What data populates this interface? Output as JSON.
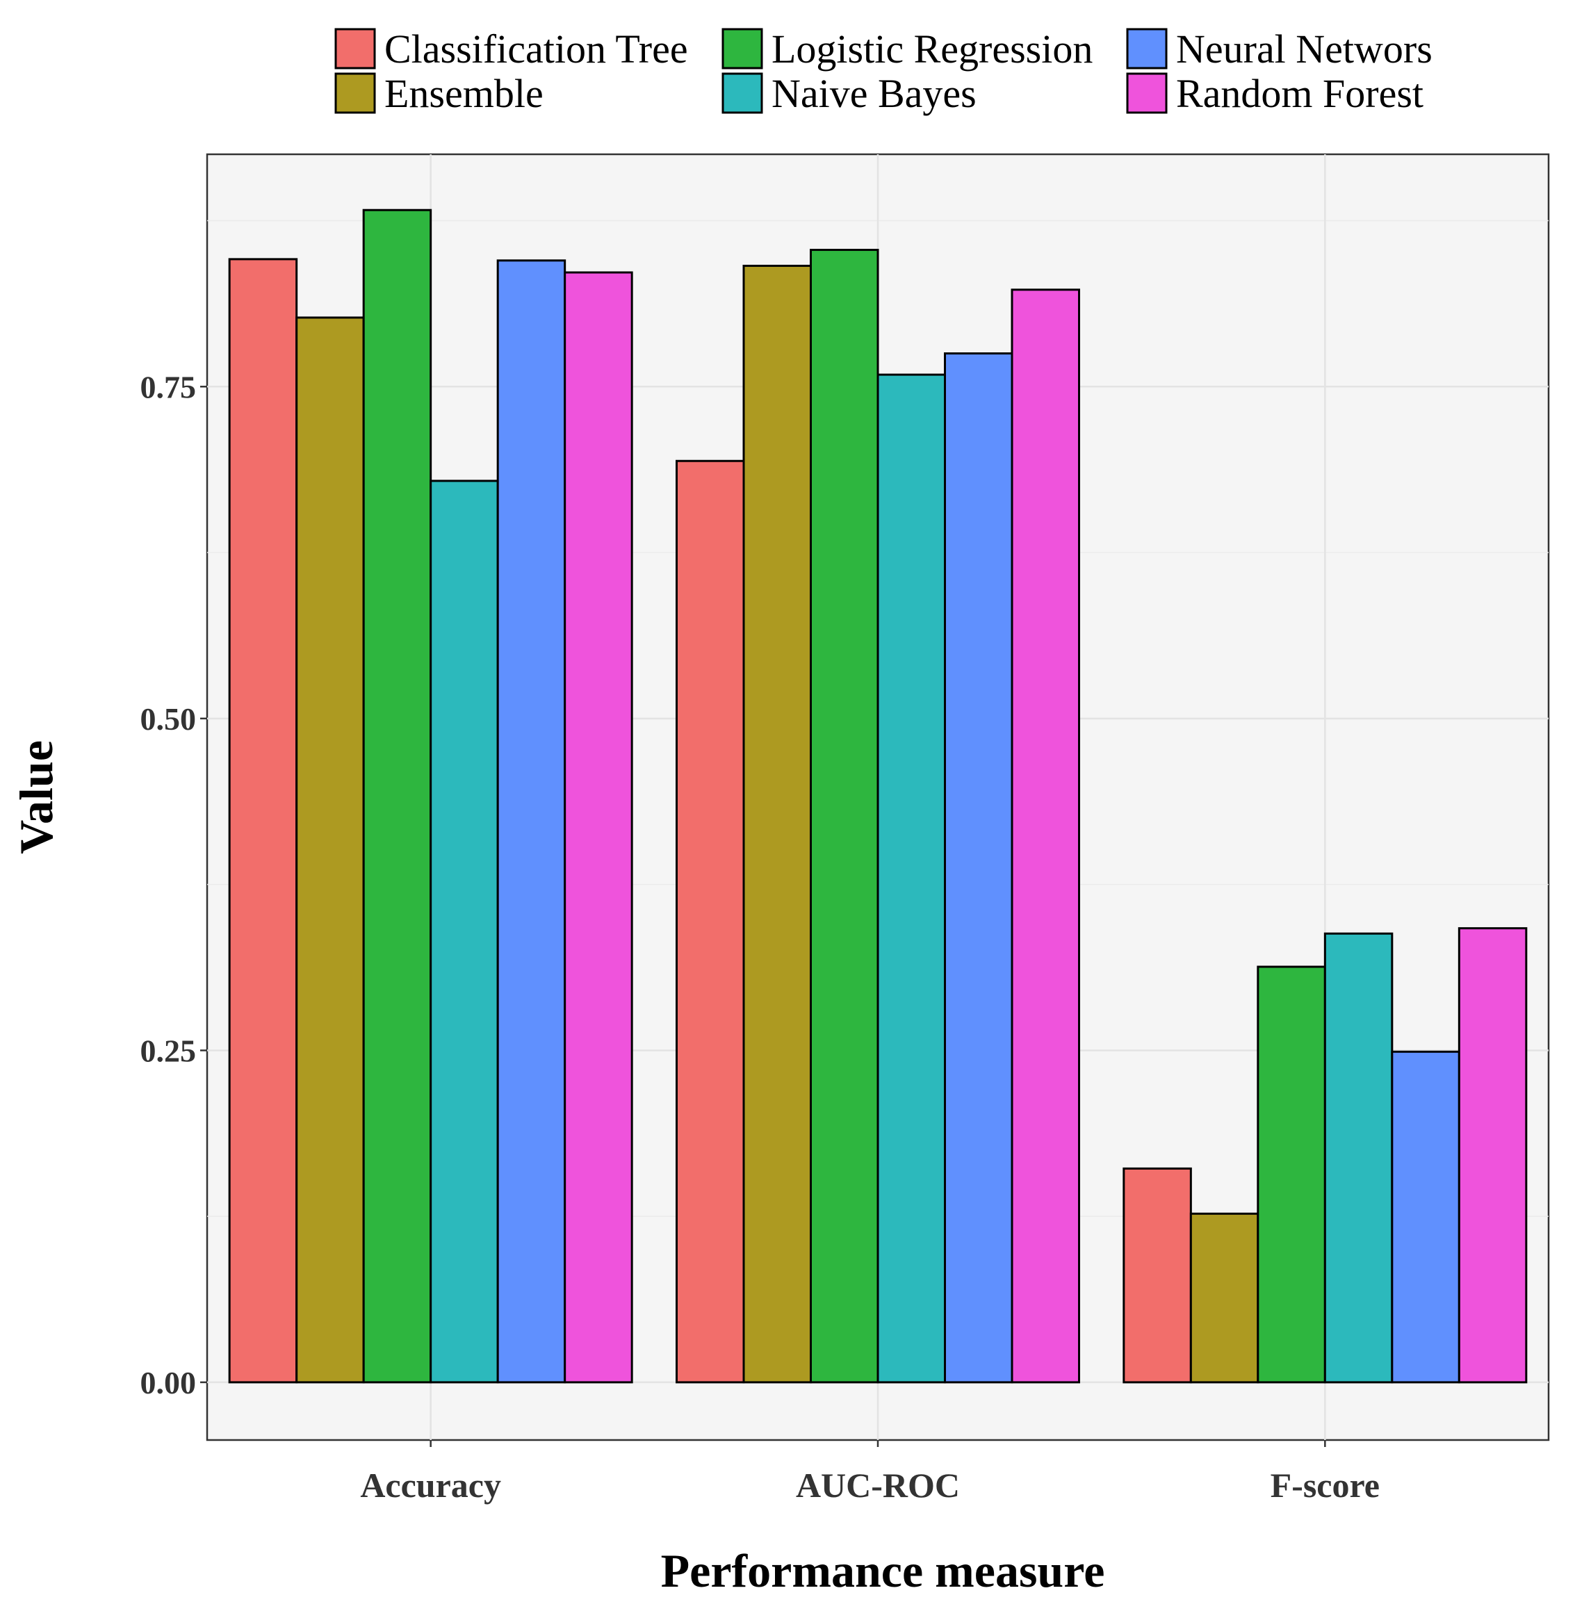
{
  "chart_data": {
    "type": "bar",
    "title": "",
    "xlabel": "Performance measure",
    "ylabel": "Value",
    "categories": [
      "Accuracy",
      "AUC-ROC",
      "F-score"
    ],
    "ylim": [
      -0.0435,
      0.925
    ],
    "yticks": [
      0.0,
      0.25,
      0.5,
      0.75
    ],
    "ytick_labels": [
      "0.00",
      "0.25",
      "0.50",
      "0.75"
    ],
    "grid": true,
    "legend_position": "top",
    "series": [
      {
        "name": "Classification Tree",
        "color": "#F26E6B",
        "values": [
          0.846,
          0.694,
          0.161
        ]
      },
      {
        "name": "Ensemble",
        "color": "#AD9A21",
        "values": [
          0.802,
          0.841,
          0.127
        ]
      },
      {
        "name": "Logistic Regression",
        "color": "#2EB63F",
        "values": [
          0.883,
          0.853,
          0.313
        ]
      },
      {
        "name": "Naive Bayes",
        "color": "#2CB9BC",
        "values": [
          0.679,
          0.759,
          0.338
        ]
      },
      {
        "name": "Neural Networs",
        "color": "#6090FE",
        "values": [
          0.845,
          0.775,
          0.249
        ]
      },
      {
        "name": "Random Forest",
        "color": "#EF53DC",
        "values": [
          0.836,
          0.823,
          0.342
        ]
      }
    ]
  }
}
